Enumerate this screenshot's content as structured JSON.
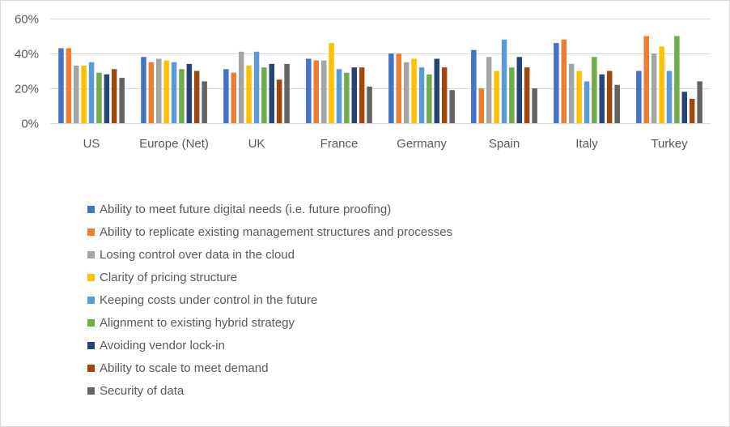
{
  "chart_data": {
    "type": "bar",
    "categories": [
      "US",
      "Europe (Net)",
      "UK",
      "France",
      "Germany",
      "Spain",
      "Italy",
      "Turkey"
    ],
    "series": [
      {
        "name": "Ability to meet future digital needs (i.e. future proofing)",
        "color": "#4472c4",
        "values": [
          43,
          38,
          31,
          37,
          40,
          42,
          46,
          30
        ]
      },
      {
        "name": "Ability to replicate existing management structures and processes",
        "color": "#ed7d31",
        "values": [
          43,
          35,
          29,
          36,
          40,
          20,
          48,
          50
        ]
      },
      {
        "name": "Losing control over data in the cloud",
        "color": "#a5a5a5",
        "values": [
          33,
          37,
          41,
          36,
          35,
          38,
          34,
          40
        ]
      },
      {
        "name": "Clarity of pricing structure",
        "color": "#ffc000",
        "values": [
          33,
          36,
          33,
          46,
          37,
          30,
          30,
          44
        ]
      },
      {
        "name": "Keeping costs under control in the future",
        "color": "#5b9bd5",
        "values": [
          35,
          35,
          41,
          31,
          32,
          48,
          24,
          30
        ]
      },
      {
        "name": "Alignment to existing hybrid strategy",
        "color": "#70ad47",
        "values": [
          29,
          31,
          32,
          29,
          28,
          32,
          38,
          50
        ]
      },
      {
        "name": "Avoiding vendor lock-in",
        "color": "#264478",
        "values": [
          28,
          34,
          34,
          32,
          37,
          38,
          28,
          18
        ]
      },
      {
        "name": "Ability to scale to meet demand",
        "color": "#9e480e",
        "values": [
          31,
          30,
          25,
          32,
          32,
          32,
          30,
          14
        ]
      },
      {
        "name": "Security of data",
        "color": "#636363",
        "values": [
          26,
          24,
          34,
          21,
          19,
          20,
          22,
          24
        ]
      }
    ],
    "ylim": [
      0,
      60
    ],
    "yticks": [
      0,
      20,
      40,
      60
    ],
    "ytick_labels": [
      "0%",
      "20%",
      "40%",
      "60%"
    ],
    "grid": true,
    "legend_position": "bottom",
    "gridline_color": "#d9d9d9"
  }
}
